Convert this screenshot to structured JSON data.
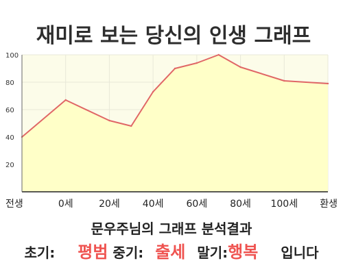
{
  "colors": {
    "line": "#e06666",
    "fill": "#ffffc8",
    "plot_bg": "#fcfce9",
    "grid": "#e8e8d8",
    "highlight": "#ef5350"
  },
  "summary": {
    "heading": "문우주님의 그래프 분석결과",
    "early_label": "초기:",
    "early_value": "평범",
    "middle_label": "중기:",
    "middle_value": "출세",
    "late_label": "말기:",
    "late_value": "행복",
    "ending": "입니다"
  },
  "chart_data": {
    "type": "area",
    "title": "재미로 보는 당신의 인생 그래프",
    "x": [
      -20,
      0,
      20,
      30,
      40,
      50,
      60,
      70,
      80,
      100,
      120
    ],
    "values": [
      40,
      67,
      52,
      48,
      73,
      90,
      94,
      100,
      91,
      81,
      79
    ],
    "x_tick_values": [
      -20,
      0,
      20,
      40,
      60,
      80,
      100,
      120
    ],
    "x_tick_labels": [
      "전생",
      "0세",
      "20세",
      "40세",
      "60세",
      "80세",
      "100세",
      "환생"
    ],
    "y_tick_values": [
      20,
      40,
      60,
      80,
      100
    ],
    "y_tick_labels": [
      "20",
      "40",
      "60",
      "80",
      "100"
    ],
    "xlim": [
      -20,
      120
    ],
    "ylim": [
      0,
      100
    ],
    "grid": true
  }
}
